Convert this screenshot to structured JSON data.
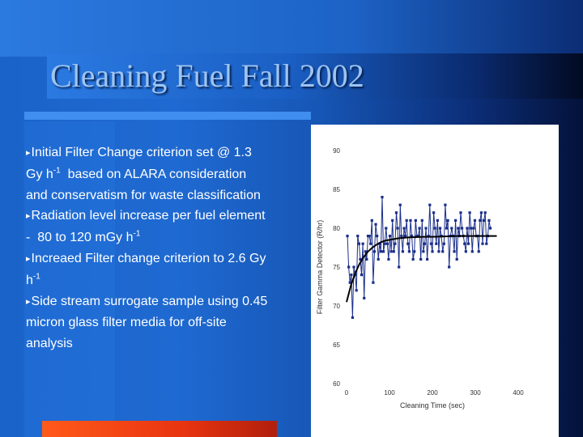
{
  "slide": {
    "title": "Cleaning Fuel Fall 2002",
    "bullets": [
      {
        "arrow": "▸",
        "text": "Initial Filter Change criterion set @ 1.3 Gy h",
        "sup": "-1",
        "after": "  based on ALARA consideration and conservatism for waste classification"
      },
      {
        "arrow": "▸",
        "text": "Radiation level increase per fuel element  -  80 to 120 mGy h",
        "sup": "-1",
        "after": ""
      },
      {
        "arrow": "▸",
        "text": "Increaed Filter change criterion to 2.6 Gy h",
        "sup": "-1",
        "after": ""
      },
      {
        "arrow": "▸",
        "text": "Side stream surrogate sample using 0.45 micron glass filter media for off-site analysis",
        "sup": "",
        "after": ""
      }
    ]
  },
  "colors": {
    "point": "#1b2f8a",
    "line": "#1b2f8a",
    "fit": "#000000"
  },
  "chart_data": {
    "type": "scatter",
    "xlabel": "Cleaning Time (sec)",
    "ylabel": "Filter Gamma Detector (R/hr)",
    "xlim": [
      0,
      400
    ],
    "ylim": [
      60,
      90
    ],
    "xticks": [
      0,
      100,
      200,
      300,
      400
    ],
    "yticks": [
      60,
      65,
      70,
      75,
      80,
      85,
      90
    ],
    "grid": false,
    "series": [
      {
        "connected": true,
        "x": [
          2,
          5,
          8,
          11,
          14,
          17,
          20,
          23,
          26,
          29,
          32,
          35,
          38,
          41,
          44,
          47,
          50,
          53,
          56,
          59,
          62,
          65,
          68,
          71,
          74,
          77,
          80,
          83,
          86,
          89,
          92,
          95,
          98,
          101,
          104,
          107,
          110,
          113,
          116,
          119,
          122,
          125,
          128,
          131,
          134,
          137,
          140,
          143,
          146,
          149,
          152,
          155,
          158,
          161,
          164,
          167,
          170,
          173,
          176,
          179,
          182,
          185,
          188,
          191,
          194,
          197,
          200,
          203,
          206,
          209,
          212,
          215,
          218,
          221,
          224,
          227,
          230,
          233,
          236,
          239,
          242,
          245,
          248,
          251,
          254,
          257,
          260,
          263,
          266,
          269,
          272,
          275,
          278,
          281,
          284,
          287,
          290,
          293,
          296,
          299,
          302,
          305,
          308,
          311,
          314,
          317,
          320,
          323,
          326,
          329,
          332,
          335
        ],
        "y": [
          79,
          75,
          73,
          74,
          68.5,
          75,
          74,
          72,
          79,
          78,
          76,
          74,
          78,
          71,
          77,
          76,
          79,
          79,
          78,
          81,
          73,
          77,
          80.5,
          79,
          76,
          78,
          77,
          84,
          77,
          78,
          80,
          78,
          76,
          79,
          77,
          81,
          77,
          78,
          82,
          80,
          75,
          83,
          79,
          77,
          80,
          79,
          81,
          78,
          77,
          81,
          79,
          76,
          77,
          81,
          79,
          79,
          80,
          76,
          81,
          77,
          78,
          80,
          76,
          79,
          83,
          78,
          77,
          82,
          80,
          78,
          81,
          77,
          80,
          79,
          77,
          78,
          83,
          80,
          81,
          75,
          79,
          80,
          79,
          77,
          81,
          76,
          80,
          79,
          82,
          80,
          79,
          78,
          77,
          80,
          78,
          82,
          80,
          77,
          80,
          81,
          79,
          79,
          77,
          81,
          82,
          78,
          81,
          82,
          78,
          79,
          81,
          80
        ]
      },
      {
        "name": "",
        "type": "fit",
        "x": [
          0,
          10,
          20,
          30,
          40,
          50,
          60,
          70,
          80,
          90,
          100,
          120,
          140,
          160,
          180,
          200,
          230,
          260,
          290,
          320,
          350
        ],
        "y": [
          70.5,
          72.6,
          74.2,
          75.4,
          76.3,
          77.0,
          77.5,
          77.9,
          78.2,
          78.4,
          78.5,
          78.7,
          78.8,
          78.85,
          78.9,
          78.9,
          78.95,
          79.0,
          79.0,
          79.0,
          79.0
        ]
      }
    ]
  }
}
